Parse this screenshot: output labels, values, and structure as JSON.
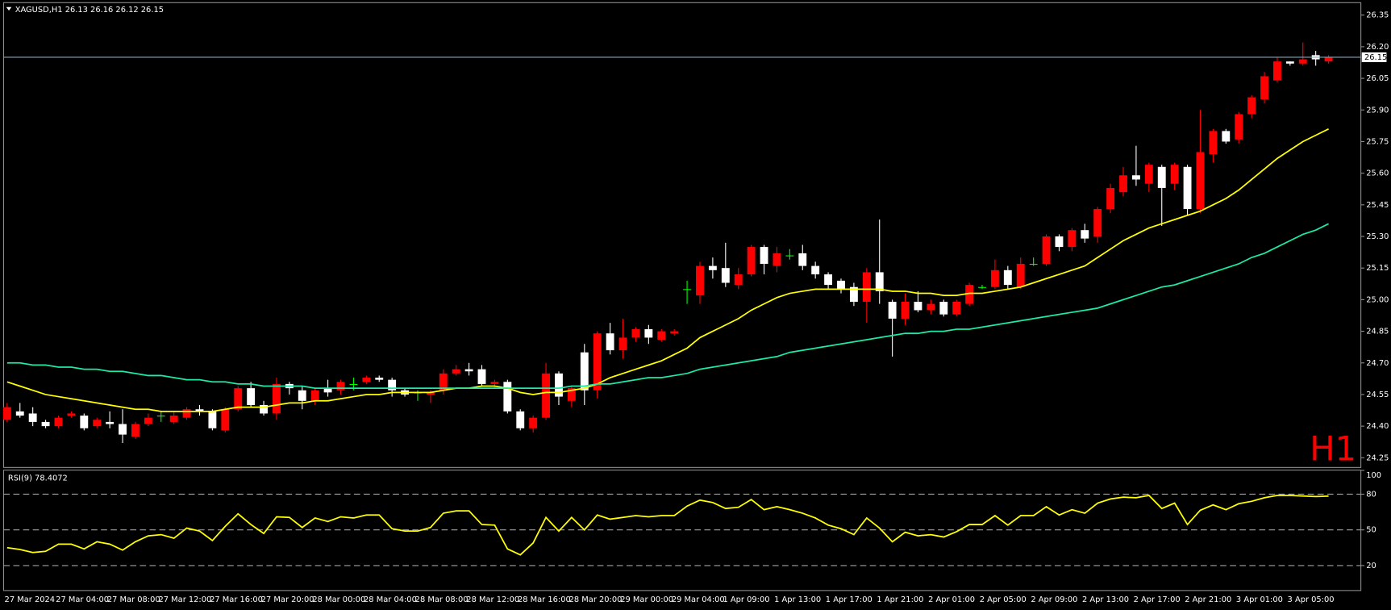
{
  "chart_data": [
    {
      "type": "candlestick",
      "title": "XAGUSD,H1  26.13 26.16 26.12 26.15",
      "period_label": "H1",
      "period_label_color": "#ff0000",
      "up_color": "#ff0000",
      "down_color": "#ffffff",
      "doji_color": "#00ff00",
      "current_price": 26.15,
      "current_price_color": "#8ea4b4",
      "categories": [
        "27 Mar 2024",
        null,
        null,
        null,
        "27 Mar 04:00",
        null,
        null,
        null,
        "27 Mar 08:00",
        null,
        null,
        null,
        "27 Mar 12:00",
        null,
        null,
        null,
        "27 Mar 16:00",
        null,
        null,
        null,
        "27 Mar 20:00",
        null,
        null,
        null,
        "28 Mar 00:00",
        null,
        null,
        null,
        "28 Mar 04:00",
        null,
        null,
        null,
        "28 Mar 08:00",
        null,
        null,
        null,
        "28 Mar 12:00",
        null,
        null,
        null,
        "28 Mar 16:00",
        null,
        null,
        null,
        "28 Mar 20:00",
        null,
        null,
        null,
        "29 Mar 00:00",
        null,
        null,
        null,
        "29 Mar 04:00",
        null,
        null,
        null,
        "1 Apr 09:00",
        null,
        null,
        null,
        "1 Apr 13:00",
        null,
        null,
        null,
        "1 Apr 17:00",
        null,
        null,
        null,
        "1 Apr 21:00",
        null,
        null,
        null,
        "2 Apr 01:00",
        null,
        null,
        null,
        "2 Apr 05:00",
        null,
        null,
        null,
        "2 Apr 09:00",
        null,
        null,
        null,
        "2 Apr 13:00",
        null,
        null,
        null,
        "2 Apr 17:00",
        null,
        null,
        null,
        "2 Apr 21:00",
        null,
        null,
        null,
        "3 Apr 01:00",
        null,
        null,
        null,
        "3 Apr 05:00",
        null,
        null,
        null
      ],
      "ohlc": [
        [
          24.43,
          24.51,
          24.42,
          24.49
        ],
        [
          24.47,
          24.51,
          24.44,
          24.45
        ],
        [
          24.46,
          24.49,
          24.4,
          24.42
        ],
        [
          24.42,
          24.43,
          24.39,
          24.4
        ],
        [
          24.4,
          24.45,
          24.39,
          24.44
        ],
        [
          24.45,
          24.47,
          24.44,
          24.46
        ],
        [
          24.45,
          24.46,
          24.38,
          24.39
        ],
        [
          24.4,
          24.44,
          24.39,
          24.43
        ],
        [
          24.42,
          24.47,
          24.39,
          24.41
        ],
        [
          24.41,
          24.48,
          24.32,
          24.36
        ],
        [
          24.35,
          24.42,
          24.34,
          24.41
        ],
        [
          24.41,
          24.46,
          24.4,
          24.44
        ],
        [
          24.45,
          24.47,
          24.42,
          24.45
        ],
        [
          24.42,
          24.47,
          24.41,
          24.45
        ],
        [
          24.44,
          24.49,
          24.43,
          24.48
        ],
        [
          24.48,
          24.5,
          24.45,
          24.47
        ],
        [
          24.47,
          24.48,
          24.38,
          24.39
        ],
        [
          24.38,
          24.49,
          24.37,
          24.48
        ],
        [
          24.48,
          24.59,
          24.47,
          24.58
        ],
        [
          24.58,
          24.61,
          24.49,
          24.5
        ],
        [
          24.5,
          24.52,
          24.45,
          24.46
        ],
        [
          24.46,
          24.63,
          24.43,
          24.6
        ],
        [
          24.6,
          24.61,
          24.55,
          24.58
        ],
        [
          24.57,
          24.59,
          24.48,
          24.52
        ],
        [
          24.52,
          24.58,
          24.5,
          24.57
        ],
        [
          24.58,
          24.62,
          24.54,
          24.56
        ],
        [
          24.57,
          24.62,
          24.55,
          24.61
        ],
        [
          24.6,
          24.63,
          24.57,
          24.6
        ],
        [
          24.61,
          24.64,
          24.6,
          24.63
        ],
        [
          24.63,
          24.64,
          24.61,
          24.62
        ],
        [
          24.62,
          24.63,
          24.54,
          24.57
        ],
        [
          24.57,
          24.58,
          24.54,
          24.55
        ],
        [
          24.56,
          24.57,
          24.52,
          24.56
        ],
        [
          24.55,
          24.57,
          24.51,
          24.56
        ],
        [
          24.57,
          24.67,
          24.55,
          24.65
        ],
        [
          24.65,
          24.69,
          24.64,
          24.67
        ],
        [
          24.67,
          24.7,
          24.64,
          24.66
        ],
        [
          24.67,
          24.69,
          24.59,
          24.6
        ],
        [
          24.6,
          24.62,
          24.58,
          24.61
        ],
        [
          24.61,
          24.62,
          24.46,
          24.47
        ],
        [
          24.47,
          24.48,
          24.38,
          24.39
        ],
        [
          24.39,
          24.45,
          24.37,
          24.44
        ],
        [
          24.44,
          24.7,
          24.43,
          24.65
        ],
        [
          24.65,
          24.66,
          24.5,
          24.54
        ],
        [
          24.52,
          24.59,
          24.49,
          24.58
        ],
        [
          24.75,
          24.79,
          24.5,
          24.57
        ],
        [
          24.57,
          24.85,
          24.53,
          24.84
        ],
        [
          24.84,
          24.89,
          24.74,
          24.76
        ],
        [
          24.76,
          24.91,
          24.72,
          24.82
        ],
        [
          24.82,
          24.87,
          24.8,
          24.86
        ],
        [
          24.86,
          24.88,
          24.79,
          24.82
        ],
        [
          24.81,
          24.86,
          24.8,
          24.85
        ],
        [
          24.84,
          24.86,
          24.83,
          24.85
        ],
        [
          25.05,
          25.09,
          24.98,
          25.05
        ],
        [
          25.02,
          25.18,
          24.98,
          25.16
        ],
        [
          25.16,
          25.2,
          25.1,
          25.14
        ],
        [
          25.15,
          25.27,
          25.06,
          25.08
        ],
        [
          25.07,
          25.15,
          25.05,
          25.12
        ],
        [
          25.12,
          25.26,
          25.11,
          25.25
        ],
        [
          25.25,
          25.26,
          25.12,
          25.17
        ],
        [
          25.16,
          25.25,
          25.13,
          25.22
        ],
        [
          25.21,
          25.24,
          25.19,
          25.21
        ],
        [
          25.22,
          25.26,
          25.14,
          25.16
        ],
        [
          25.16,
          25.18,
          25.1,
          25.12
        ],
        [
          25.12,
          25.13,
          25.05,
          25.07
        ],
        [
          25.09,
          25.1,
          25.03,
          25.05
        ],
        [
          25.06,
          25.08,
          24.97,
          24.99
        ],
        [
          24.99,
          25.15,
          24.89,
          25.13
        ],
        [
          25.13,
          25.38,
          24.98,
          25.04
        ],
        [
          24.99,
          25.0,
          24.73,
          24.91
        ],
        [
          24.91,
          25.03,
          24.88,
          24.99
        ],
        [
          24.99,
          25.04,
          24.94,
          24.95
        ],
        [
          24.95,
          25.0,
          24.93,
          24.98
        ],
        [
          24.99,
          25.0,
          24.92,
          24.93
        ],
        [
          24.93,
          25.0,
          24.92,
          24.99
        ],
        [
          24.98,
          25.08,
          24.97,
          25.07
        ],
        [
          25.06,
          25.07,
          25.05,
          25.06
        ],
        [
          25.06,
          25.19,
          25.05,
          25.14
        ],
        [
          25.14,
          25.16,
          25.05,
          25.07
        ],
        [
          25.06,
          25.2,
          25.05,
          25.17
        ],
        [
          25.17,
          25.2,
          25.16,
          25.17
        ],
        [
          25.17,
          25.31,
          25.16,
          25.3
        ],
        [
          25.3,
          25.31,
          25.23,
          25.25
        ],
        [
          25.25,
          25.34,
          25.23,
          25.33
        ],
        [
          25.33,
          25.36,
          25.27,
          25.29
        ],
        [
          25.3,
          25.44,
          25.27,
          25.43
        ],
        [
          25.43,
          25.55,
          25.41,
          25.53
        ],
        [
          25.51,
          25.63,
          25.49,
          25.59
        ],
        [
          25.59,
          25.73,
          25.54,
          25.57
        ],
        [
          25.55,
          25.65,
          25.51,
          25.64
        ],
        [
          25.63,
          25.64,
          25.35,
          25.53
        ],
        [
          25.55,
          25.65,
          25.52,
          25.64
        ],
        [
          25.63,
          25.64,
          25.4,
          25.43
        ],
        [
          25.43,
          25.9,
          25.41,
          25.7
        ],
        [
          25.69,
          25.81,
          25.65,
          25.8
        ],
        [
          25.8,
          25.81,
          25.74,
          25.75
        ],
        [
          25.76,
          25.89,
          25.74,
          25.88
        ],
        [
          25.88,
          25.97,
          25.86,
          25.96
        ],
        [
          25.95,
          26.08,
          25.93,
          26.06
        ],
        [
          26.04,
          26.15,
          26.03,
          26.13
        ],
        [
          26.13,
          26.13,
          26.11,
          26.12
        ],
        [
          26.12,
          26.22,
          26.11,
          26.14
        ],
        [
          26.16,
          26.18,
          26.11,
          26.14
        ],
        [
          26.13,
          26.16,
          26.12,
          26.15
        ]
      ],
      "series": [
        {
          "color": "#ffff00",
          "values": [
            24.61,
            24.59,
            24.57,
            24.55,
            24.54,
            24.53,
            24.52,
            24.51,
            24.5,
            24.49,
            24.48,
            24.48,
            24.47,
            24.47,
            24.47,
            24.47,
            24.47,
            24.48,
            24.49,
            24.49,
            24.49,
            24.5,
            24.51,
            24.51,
            24.52,
            24.52,
            24.53,
            24.54,
            24.55,
            24.55,
            24.56,
            24.56,
            24.56,
            24.56,
            24.57,
            24.58,
            24.58,
            24.59,
            24.59,
            24.58,
            24.56,
            24.55,
            24.56,
            24.56,
            24.57,
            24.58,
            24.6,
            24.63,
            24.65,
            24.67,
            24.69,
            24.71,
            24.74,
            24.77,
            24.82,
            24.85,
            24.88,
            24.91,
            24.95,
            24.98,
            25.01,
            25.03,
            25.04,
            25.05,
            25.05,
            25.05,
            25.05,
            25.05,
            25.05,
            25.04,
            25.04,
            25.03,
            25.03,
            25.02,
            25.02,
            25.03,
            25.03,
            25.04,
            25.05,
            25.06,
            25.08,
            25.1,
            25.12,
            25.14,
            25.16,
            25.2,
            25.24,
            25.28,
            25.31,
            25.34,
            25.36,
            25.38,
            25.4,
            25.42,
            25.45,
            25.48,
            25.52,
            25.57,
            25.62,
            25.67,
            25.71,
            25.75,
            25.78,
            25.81
          ]
        },
        {
          "color": "#1de9a8",
          "values": [
            24.7,
            24.7,
            24.69,
            24.69,
            24.68,
            24.68,
            24.67,
            24.67,
            24.66,
            24.66,
            24.65,
            24.64,
            24.64,
            24.63,
            24.62,
            24.62,
            24.61,
            24.61,
            24.6,
            24.6,
            24.59,
            24.59,
            24.59,
            24.59,
            24.58,
            24.58,
            24.58,
            24.58,
            24.58,
            24.58,
            24.58,
            24.58,
            24.58,
            24.58,
            24.58,
            24.58,
            24.58,
            24.58,
            24.58,
            24.58,
            24.58,
            24.58,
            24.58,
            24.58,
            24.59,
            24.59,
            24.6,
            24.6,
            24.61,
            24.62,
            24.63,
            24.63,
            24.64,
            24.65,
            24.67,
            24.68,
            24.69,
            24.7,
            24.71,
            24.72,
            24.73,
            24.75,
            24.76,
            24.77,
            24.78,
            24.79,
            24.8,
            24.81,
            24.82,
            24.83,
            24.84,
            24.84,
            24.85,
            24.85,
            24.86,
            24.86,
            24.87,
            24.88,
            24.89,
            24.9,
            24.91,
            24.92,
            24.93,
            24.94,
            24.95,
            24.96,
            24.98,
            25.0,
            25.02,
            25.04,
            25.06,
            25.07,
            25.09,
            25.11,
            25.13,
            25.15,
            25.17,
            25.2,
            25.22,
            25.25,
            25.28,
            25.31,
            25.33,
            25.36
          ]
        }
      ],
      "ylim": [
        24.204,
        26.409
      ],
      "yticks": [
        26.35,
        {
          "value": 26.2,
          "label": "26.20"
        },
        26.05,
        {
          "value": 25.9,
          "label": "25.90"
        },
        25.75,
        {
          "value": 25.6,
          "label": "25.60"
        },
        25.45,
        {
          "value": 25.3,
          "label": "25.30"
        },
        25.15,
        {
          "value": 25,
          "label": "25.00"
        },
        24.85,
        {
          "value": 24.7,
          "label": "24.70"
        },
        24.55,
        {
          "value": 24.4,
          "label": "24.40"
        },
        24.25
      ]
    },
    {
      "type": "line",
      "title": "RSI(9) 78.4072",
      "color": "#ffff00",
      "values": [
        35,
        33.5,
        31,
        32,
        38,
        38,
        34,
        40,
        38,
        33,
        40,
        45,
        46,
        43,
        51.5,
        49,
        41,
        53,
        63.5,
        54.5,
        47,
        61,
        60.5,
        52,
        60,
        57,
        61,
        60,
        62.5,
        62.5,
        51,
        49,
        49,
        52,
        64,
        66,
        66,
        54.5,
        54,
        34,
        29,
        39,
        60.5,
        49,
        60.5,
        50,
        62.5,
        59,
        60.5,
        62,
        61,
        62,
        62,
        70,
        75,
        73,
        68,
        69,
        75.5,
        67,
        69.5,
        67,
        64,
        60,
        54,
        51,
        46,
        60,
        51.5,
        40,
        48,
        45,
        46,
        44,
        48.5,
        54.5,
        54.5,
        62,
        54,
        62,
        62,
        69.5,
        62.5,
        67,
        64,
        72.5,
        76,
        77.5,
        77,
        79,
        68,
        72.5,
        54.5,
        66.5,
        71,
        67,
        72,
        74,
        77,
        79,
        79,
        78.5,
        78,
        78.4
      ],
      "ylim": [
        -1,
        100.25
      ],
      "yticks": [
        100,
        80,
        50,
        20
      ],
      "levels": [
        80,
        50,
        20
      ]
    }
  ]
}
